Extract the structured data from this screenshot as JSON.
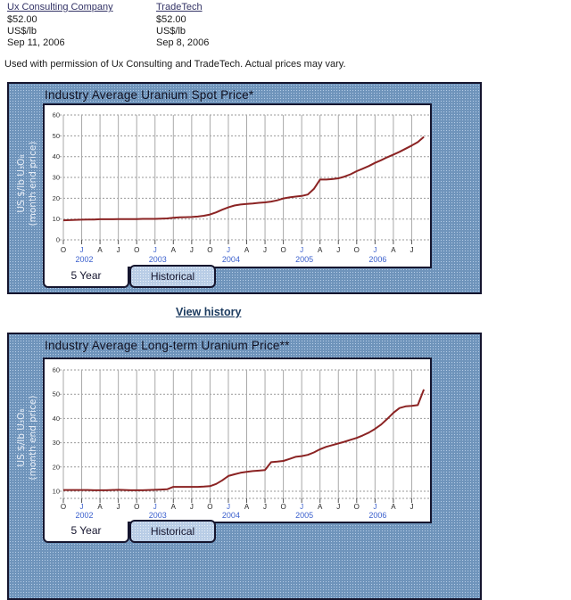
{
  "header": {
    "sources": [
      {
        "name": "Ux Consulting Company",
        "price": "$52.00",
        "unit": "US$/lb",
        "date": "Sep 11, 2006"
      },
      {
        "name": "TradeTech",
        "price": "$52.00",
        "unit": "US$/lb",
        "date": "Sep 8, 2006"
      }
    ],
    "disclaimer": "Used with permission of Ux Consulting and TradeTech. Actual prices may vary."
  },
  "links": {
    "view_history": "View history"
  },
  "tabs": {
    "five_year": "5 Year",
    "historical": "Historical"
  },
  "colors": {
    "panel_blue": "#6f94bb",
    "panel_dot": "#b6cde7",
    "line_maroon": "#8b2323",
    "axis_label_blue": "#3a5fcd",
    "grid_gray": "#999999",
    "link_navy": "#333366",
    "view_history_navy": "#1d3c60",
    "ylabel_white": "#e8eef7"
  },
  "chart_data": [
    {
      "type": "line",
      "title": "Industry Average Uranium Spot Price*",
      "ylabel_line1": "US $/lb U₃O₈",
      "ylabel_line2": "(month end price)",
      "x_range": "Oct 2001 - Sep 2006, monthly",
      "x_tick_labels": [
        "O",
        "J",
        "A",
        "J",
        "O",
        "J",
        "A",
        "J",
        "O",
        "J",
        "A",
        "J",
        "O",
        "J",
        "A",
        "J",
        "O",
        "J",
        "A",
        "J"
      ],
      "jan_tick_indices": [
        1,
        5,
        9,
        13,
        17
      ],
      "year_labels": [
        "2002",
        "2003",
        "2004",
        "2005",
        "2006"
      ],
      "y_ticks": [
        0,
        10,
        20,
        30,
        40,
        50,
        60
      ],
      "ylim": [
        0,
        62
      ],
      "values": [
        9.4,
        9.5,
        9.6,
        9.7,
        9.8,
        9.8,
        9.9,
        9.9,
        9.9,
        10.0,
        10.0,
        10.0,
        10.0,
        10.1,
        10.1,
        10.1,
        10.2,
        10.3,
        10.6,
        10.8,
        10.9,
        11.0,
        11.2,
        11.6,
        12.2,
        13.2,
        14.5,
        15.6,
        16.5,
        17.0,
        17.3,
        17.5,
        17.8,
        18.0,
        18.4,
        19.0,
        19.9,
        20.4,
        20.8,
        21.1,
        21.8,
        24.5,
        29.0,
        29.0,
        29.2,
        29.6,
        30.4,
        31.5,
        33.0,
        34.2,
        35.5,
        37.0,
        38.3,
        39.7,
        41.0,
        42.3,
        43.8,
        45.3,
        47.0,
        49.5
      ]
    },
    {
      "type": "line",
      "title": "Industry Average Long-term Uranium Price**",
      "ylabel_line1": "US $/lb U₃O₈",
      "ylabel_line2": "(month end price)",
      "x_range": "Oct 2001 - Sep 2006, monthly",
      "x_tick_labels": [
        "O",
        "J",
        "A",
        "J",
        "O",
        "J",
        "A",
        "J",
        "O",
        "J",
        "A",
        "J",
        "O",
        "J",
        "A",
        "J",
        "O",
        "J",
        "A",
        "J"
      ],
      "jan_tick_indices": [
        1,
        5,
        9,
        13,
        17
      ],
      "year_labels": [
        "2002",
        "2003",
        "2004",
        "2005",
        "2006"
      ],
      "y_ticks": [
        10,
        20,
        30,
        40,
        50,
        60
      ],
      "ylim": [
        8,
        62
      ],
      "values": [
        10.5,
        10.5,
        10.5,
        10.5,
        10.5,
        10.4,
        10.4,
        10.4,
        10.5,
        10.6,
        10.5,
        10.4,
        10.4,
        10.4,
        10.5,
        10.6,
        10.7,
        10.8,
        11.8,
        11.8,
        11.8,
        11.8,
        11.8,
        11.9,
        12.1,
        13.0,
        14.5,
        16.3,
        17.0,
        17.6,
        18.0,
        18.3,
        18.5,
        18.7,
        22.0,
        22.2,
        22.5,
        23.3,
        24.2,
        24.5,
        25.0,
        26.0,
        27.3,
        28.3,
        29.0,
        29.7,
        30.4,
        31.2,
        32.0,
        33.0,
        34.2,
        35.7,
        37.5,
        39.8,
        42.3,
        44.3,
        45.0,
        45.2,
        45.5,
        52.0
      ]
    }
  ]
}
